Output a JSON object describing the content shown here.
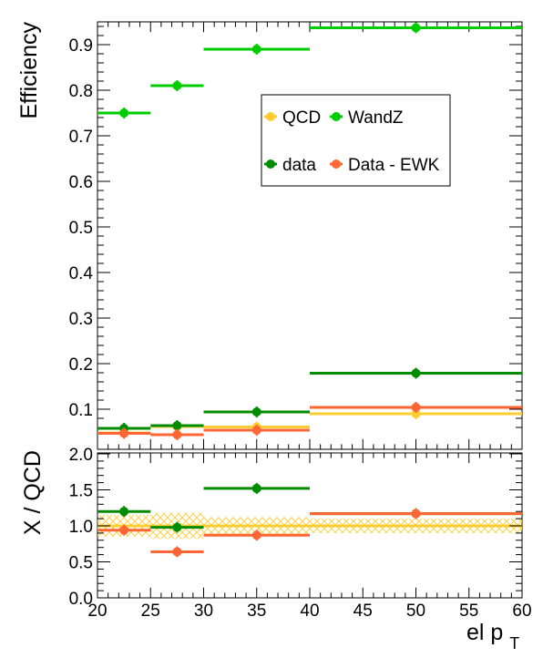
{
  "chart_data": [
    {
      "type": "scatter",
      "panel": "efficiency",
      "ylabel": "Efficiency",
      "xlim": [
        20,
        60
      ],
      "ylim": [
        0.05,
        0.95
      ],
      "x_ticks": [
        20,
        25,
        30,
        35,
        40,
        45,
        50,
        55,
        60
      ],
      "y_ticks": [
        0.1,
        0.2,
        0.3,
        0.4,
        0.5,
        0.6,
        0.7,
        0.8,
        0.9
      ],
      "x_tick_labels": [
        "20",
        "25",
        "30",
        "35",
        "40",
        "45",
        "50",
        "55",
        "60"
      ],
      "y_tick_labels": [
        "0.1",
        "0.2",
        "0.3",
        "0.4",
        "0.5",
        "0.6",
        "0.7",
        "0.8",
        "0.9"
      ],
      "legend_position": "upper-center",
      "series": [
        {
          "name": "QCD",
          "color": "#ffcc33",
          "points": [
            {
              "x": 22.5,
              "xlo": 20,
              "xhi": 25,
              "y": 0.048
            },
            {
              "x": 27.5,
              "xlo": 25,
              "xhi": 30,
              "y": 0.062
            },
            {
              "x": 35,
              "xlo": 30,
              "xhi": 40,
              "y": 0.061
            },
            {
              "x": 50,
              "xlo": 40,
              "xhi": 60,
              "y": 0.09
            }
          ]
        },
        {
          "name": "WandZ",
          "color": "#00cc00",
          "points": [
            {
              "x": 22.5,
              "xlo": 20,
              "xhi": 25,
              "y": 0.75
            },
            {
              "x": 27.5,
              "xlo": 25,
              "xhi": 30,
              "y": 0.81
            },
            {
              "x": 35,
              "xlo": 30,
              "xhi": 40,
              "y": 0.89
            },
            {
              "x": 50,
              "xlo": 40,
              "xhi": 60,
              "y": 0.937
            }
          ]
        },
        {
          "name": "data",
          "color": "#008c00",
          "points": [
            {
              "x": 22.5,
              "xlo": 20,
              "xhi": 25,
              "y": 0.058
            },
            {
              "x": 27.5,
              "xlo": 25,
              "xhi": 30,
              "y": 0.064
            },
            {
              "x": 35,
              "xlo": 30,
              "xhi": 40,
              "y": 0.094
            },
            {
              "x": 50,
              "xlo": 40,
              "xhi": 60,
              "y": 0.179
            }
          ]
        },
        {
          "name": "Data - EWK",
          "color": "#ff6633",
          "points": [
            {
              "x": 22.5,
              "xlo": 20,
              "xhi": 25,
              "y": 0.047
            },
            {
              "x": 27.5,
              "xlo": 25,
              "xhi": 30,
              "y": 0.044
            },
            {
              "x": 35,
              "xlo": 30,
              "xhi": 40,
              "y": 0.054
            },
            {
              "x": 50,
              "xlo": 40,
              "xhi": 60,
              "y": 0.104
            }
          ]
        }
      ]
    },
    {
      "type": "scatter",
      "panel": "ratio",
      "xlabel": "el p",
      "xlabel_sub": "T",
      "ylabel": "X / QCD",
      "xlim": [
        20,
        60
      ],
      "ylim": [
        0,
        2
      ],
      "x_ticks": [
        20,
        25,
        30,
        35,
        40,
        45,
        50,
        55,
        60
      ],
      "y_ticks": [
        0,
        0.5,
        1,
        1.5,
        2
      ],
      "x_tick_labels": [
        "20",
        "25",
        "30",
        "35",
        "40",
        "45",
        "50",
        "55",
        "60"
      ],
      "y_tick_labels": [
        "0.0",
        "0.5",
        "1.0",
        "1.5",
        "2.0"
      ],
      "reference_line": {
        "y": 1.0,
        "color": "#ffcc33"
      },
      "uncertainty_band": {
        "color": "#ffcc33",
        "segments": [
          {
            "xlo": 20,
            "xhi": 25,
            "ylo": 0.85,
            "yhi": 1.15
          },
          {
            "xlo": 25,
            "xhi": 30,
            "ylo": 0.82,
            "yhi": 1.18
          },
          {
            "xlo": 30,
            "xhi": 40,
            "ylo": 0.88,
            "yhi": 1.12
          },
          {
            "xlo": 40,
            "xhi": 60,
            "ylo": 0.9,
            "yhi": 1.1
          }
        ]
      },
      "series": [
        {
          "name": "data",
          "color": "#008c00",
          "points": [
            {
              "x": 22.5,
              "xlo": 20,
              "xhi": 25,
              "y": 1.2
            },
            {
              "x": 27.5,
              "xlo": 25,
              "xhi": 30,
              "y": 0.98
            },
            {
              "x": 35,
              "xlo": 30,
              "xhi": 40,
              "y": 1.52
            },
            {
              "x": 50,
              "xlo": 40,
              "xhi": 60,
              "y": 1.17
            }
          ]
        },
        {
          "name": "Data - EWK",
          "color": "#ff6633",
          "points": [
            {
              "x": 22.5,
              "xlo": 20,
              "xhi": 25,
              "y": 0.94
            },
            {
              "x": 27.5,
              "xlo": 25,
              "xhi": 30,
              "y": 0.64
            },
            {
              "x": 35,
              "xlo": 30,
              "xhi": 40,
              "y": 0.87
            },
            {
              "x": 50,
              "xlo": 40,
              "xhi": 60,
              "y": 1.17
            }
          ]
        }
      ]
    }
  ]
}
